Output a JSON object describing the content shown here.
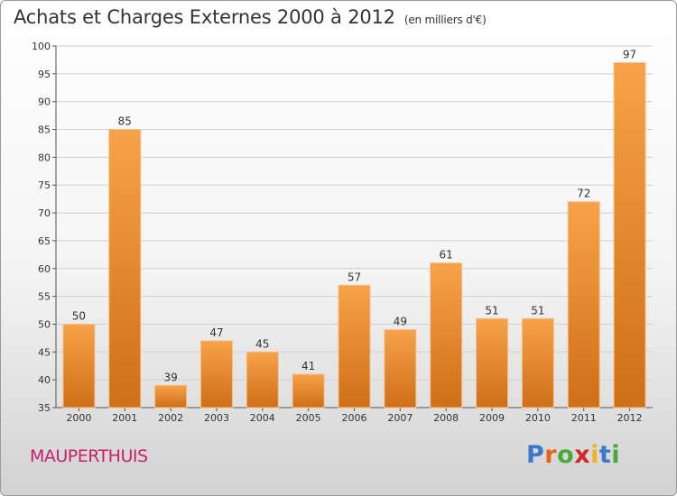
{
  "header": {
    "title": "Achats et Charges Externes 2000 à 2012",
    "subtitle": "(en milliers d'€)"
  },
  "footer": {
    "commune": "MAUPERTHUIS",
    "logo_letters": [
      {
        "ch": "P",
        "color": "#3a78c9"
      },
      {
        "ch": "r",
        "color": "#e8631a"
      },
      {
        "ch": "o",
        "color": "#4aa83c"
      },
      {
        "ch": "x",
        "color": "#d6262b"
      },
      {
        "ch": "i",
        "color": "#f0b422"
      },
      {
        "ch": "t",
        "color": "#3a78c9"
      },
      {
        "ch": "i",
        "color": "#4aa83c"
      }
    ]
  },
  "chart_data": {
    "type": "bar",
    "title": "Achats et Charges Externes 2000 à 2012",
    "subtitle": "(en milliers d'€)",
    "categories": [
      "2000",
      "2001",
      "2002",
      "2003",
      "2004",
      "2005",
      "2006",
      "2007",
      "2008",
      "2009",
      "2010",
      "2011",
      "2012"
    ],
    "values": [
      50,
      85,
      39,
      47,
      45,
      41,
      57,
      49,
      61,
      51,
      51,
      72,
      97
    ],
    "ylim": [
      35,
      100
    ],
    "yticks": [
      35,
      40,
      45,
      50,
      55,
      60,
      65,
      70,
      75,
      80,
      85,
      90,
      95,
      100
    ],
    "grid": true,
    "colors": {
      "bar_light": "#f7a24a",
      "bar_dark": "#cf6f17",
      "grid": "#cfcfcf"
    }
  }
}
